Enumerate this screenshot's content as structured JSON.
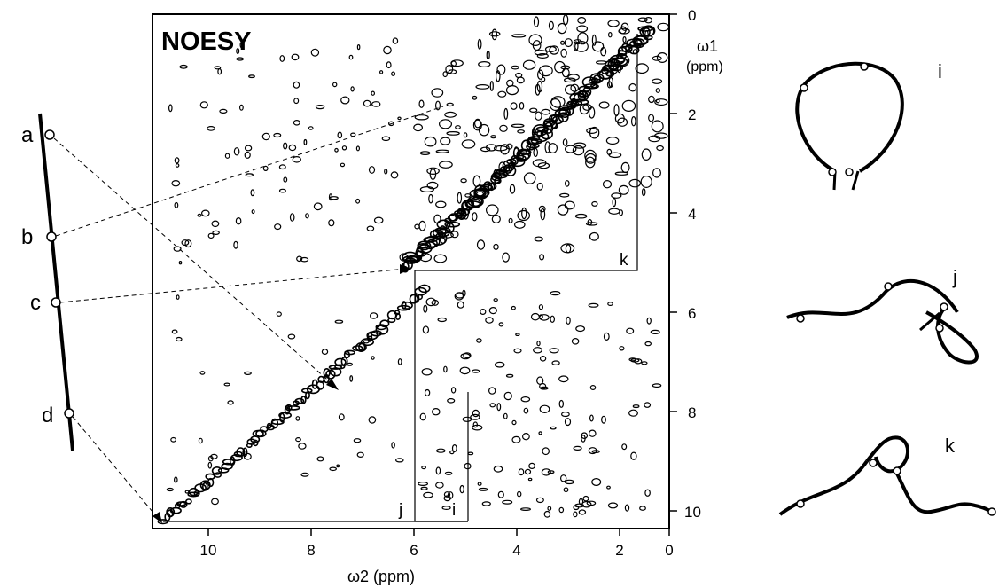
{
  "spectrum": {
    "title": "NOESY",
    "x_axis_label": "ω2 (ppm)",
    "y_axis_label_symbol": "ω1",
    "y_axis_label_unit": "(ppm)",
    "x_ticks": [
      "10",
      "8",
      "6",
      "4",
      "2",
      "0"
    ],
    "y_ticks": [
      "0",
      "2",
      "4",
      "6",
      "8",
      "10"
    ],
    "cross_peak_labels": [
      "i",
      "j",
      "k"
    ]
  },
  "chain": {
    "points": [
      "a",
      "b",
      "c",
      "d"
    ]
  },
  "conformations": [
    "i",
    "j",
    "k"
  ]
}
